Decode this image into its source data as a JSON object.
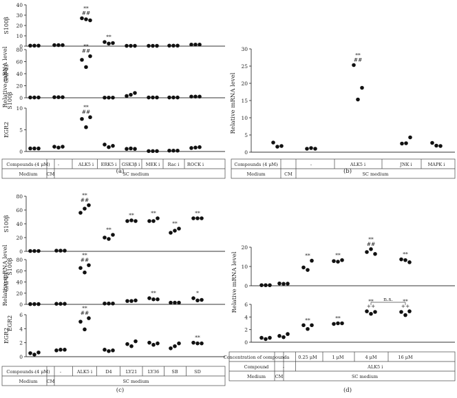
{
  "figure": {
    "row_labels": {
      "compounds_4um": "Compounds (4 μM)",
      "compound": "Compound",
      "concentration": "Concentration of compounda",
      "medium": "Medium"
    },
    "panel_letters": [
      "(a)",
      "(b)",
      "(c)",
      "(d)"
    ],
    "common_ylabel": "Relative mRNA level",
    "dash": "-",
    "cm_label": "CM",
    "sc_medium_label": "SC medium",
    "sig_double_star": "**",
    "sig_double_hash": "##",
    "sig_single_star": "*",
    "sig_double_plus": "++",
    "ns_label": "n.s.",
    "alk5_label": "ALK5 i"
  },
  "chart_data": [
    {
      "panel": "(a)",
      "type": "scatter",
      "categories": [
        "-",
        "-",
        "ALK5 i",
        "ERK5 i",
        "GSK3β i",
        "MEK i",
        "Rac i",
        "ROCK i"
      ],
      "medium": [
        "CM",
        "SC medium"
      ],
      "subplots": [
        {
          "gene": "S100β",
          "ylim": [
            0,
            40
          ],
          "yticks": [
            0,
            10,
            20,
            30,
            40
          ],
          "points": [
            [
              0.5,
              0.5,
              0.5
            ],
            [
              1,
              1,
              1
            ],
            [
              27,
              26,
              25
            ],
            [
              4,
              2.5,
              3
            ],
            [
              0.3,
              0.3,
              0.3
            ],
            [
              0.3,
              0.3,
              0.3
            ],
            [
              0.5,
              0.5,
              0.5
            ],
            [
              1.5,
              1.5,
              1.5
            ]
          ],
          "annotations": [
            {
              "category": 2,
              "lines": [
                "**",
                "##"
              ]
            },
            {
              "category": 3,
              "lines": [
                "**"
              ]
            }
          ]
        },
        {
          "gene": "GAP43",
          "ylim": [
            0,
            80
          ],
          "yticks": [
            0,
            20,
            40,
            60,
            80
          ],
          "points": [
            [
              0.5,
              0.5,
              0.5
            ],
            [
              1,
              1,
              1
            ],
            [
              63,
              51,
              69
            ],
            [
              0.3,
              0.3,
              0.3
            ],
            [
              3,
              5,
              8
            ],
            [
              0.5,
              0.5,
              0.5
            ],
            [
              0.5,
              0.5,
              0.5
            ],
            [
              2,
              2,
              2
            ]
          ],
          "annotations": [
            {
              "category": 2,
              "lines": [
                "**",
                "##"
              ]
            }
          ]
        },
        {
          "gene": "EGR2",
          "ylim": [
            0,
            10
          ],
          "yticks": [
            0,
            5,
            10
          ],
          "points": [
            [
              0.7,
              0.7,
              0.7
            ],
            [
              1.1,
              0.9,
              1.1
            ],
            [
              7.5,
              5.6,
              7.9
            ],
            [
              1.6,
              1.0,
              1.3
            ],
            [
              0.6,
              0.7,
              0.6
            ],
            [
              0.1,
              0.1,
              0.1
            ],
            [
              0.2,
              0.2,
              0.2
            ],
            [
              0.8,
              0.9,
              1.0
            ]
          ],
          "annotations": [
            {
              "category": 2,
              "lines": [
                "**",
                "##"
              ]
            }
          ]
        }
      ]
    },
    {
      "panel": "(b)",
      "type": "scatter",
      "categories": [
        "-",
        "-",
        "ALK5 i",
        "JNK i",
        "MAPK i"
      ],
      "medium": [
        "CM",
        "SC medium"
      ],
      "subplots": [
        {
          "gene": "S100β",
          "ylim": [
            0,
            30
          ],
          "yticks": [
            0,
            5,
            10,
            15,
            20,
            25,
            30
          ],
          "points": [
            [
              2.8,
              1.6,
              1.8
            ],
            [
              1.0,
              1.2,
              1.0
            ],
            [
              25.3,
              15.3,
              18.7
            ],
            [
              2.5,
              2.6,
              4.3
            ],
            [
              2.7,
              1.9,
              1.8
            ]
          ],
          "annotations": [
            {
              "category": 2,
              "lines": [
                "**",
                "##"
              ]
            }
          ]
        }
      ]
    },
    {
      "panel": "(c)",
      "type": "scatter",
      "categories": [
        "-",
        "-",
        "ALK5 i",
        "D4",
        "LY21",
        "LY36",
        "SB",
        "SD"
      ],
      "medium": [
        "CM",
        "SC medium"
      ],
      "subplots": [
        {
          "gene": "S100β",
          "ylim": [
            0,
            80
          ],
          "yticks": [
            0,
            20,
            40,
            60,
            80
          ],
          "points": [
            [
              0.5,
              0.5,
              0.5
            ],
            [
              1,
              1,
              1
            ],
            [
              56,
              62,
              67
            ],
            [
              20,
              18,
              24
            ],
            [
              44,
              45,
              44
            ],
            [
              44,
              44,
              48
            ],
            [
              27,
              30,
              33
            ],
            [
              48,
              48,
              48
            ]
          ],
          "annotations": [
            {
              "category": 2,
              "lines": [
                "**",
                "##"
              ]
            },
            {
              "category": 3,
              "lines": [
                "**"
              ]
            },
            {
              "category": 4,
              "lines": [
                "**"
              ]
            },
            {
              "category": 5,
              "lines": [
                "**"
              ]
            },
            {
              "category": 6,
              "lines": [
                "**"
              ]
            },
            {
              "category": 7,
              "lines": [
                "**"
              ]
            }
          ]
        },
        {
          "gene": "GAP43",
          "ylim": [
            0,
            80
          ],
          "yticks": [
            0,
            20,
            40,
            60,
            80
          ],
          "points": [
            [
              0.5,
              0.5,
              0.5
            ],
            [
              1,
              1,
              1
            ],
            [
              65,
              57,
              70
            ],
            [
              1.5,
              1.5,
              1.5
            ],
            [
              6,
              6,
              7
            ],
            [
              11,
              9,
              9
            ],
            [
              3,
              3,
              3
            ],
            [
              11,
              7,
              8
            ]
          ],
          "annotations": [
            {
              "category": 2,
              "lines": [
                "**",
                "##"
              ]
            },
            {
              "category": 5,
              "lines": [
                "**"
              ]
            },
            {
              "category": 7,
              "lines": [
                "*"
              ]
            }
          ]
        },
        {
          "gene": "EGR2",
          "ylim": [
            0,
            6
          ],
          "yticks": [
            0,
            2,
            4,
            6
          ],
          "points": [
            [
              0.5,
              0.3,
              0.6
            ],
            [
              0.9,
              1.0,
              1.0
            ],
            [
              5.0,
              3.9,
              5.5
            ],
            [
              1.0,
              0.8,
              0.9
            ],
            [
              1.8,
              1.5,
              2.2
            ],
            [
              2.0,
              1.7,
              1.9
            ],
            [
              1.2,
              1.5,
              1.9
            ],
            [
              2.0,
              1.9,
              1.9
            ]
          ],
          "annotations": [
            {
              "category": 2,
              "lines": [
                "**",
                "##"
              ]
            },
            {
              "category": 7,
              "lines": [
                "**"
              ]
            }
          ]
        }
      ]
    },
    {
      "panel": "(d)",
      "type": "scatter",
      "categories": [
        "-",
        "-",
        "0.25 μM",
        "1 μM",
        "4 μM",
        "16 μM"
      ],
      "compound": "ALK5 i",
      "medium": [
        "CM",
        "SC medium"
      ],
      "subplots": [
        {
          "gene": "S100β",
          "ylim": [
            0,
            20
          ],
          "yticks": [
            0,
            10,
            20
          ],
          "points": [
            [
              0.3,
              0.3,
              0.3
            ],
            [
              1.2,
              1.0,
              1.1
            ],
            [
              9.5,
              8.2,
              13
            ],
            [
              12.8,
              12.5,
              13.3
            ],
            [
              17.5,
              19,
              16.5
            ],
            [
              13.7,
              13.3,
              12.2
            ]
          ],
          "annotations": [
            {
              "category": 2,
              "lines": [
                "**"
              ]
            },
            {
              "category": 3,
              "lines": [
                "**"
              ]
            },
            {
              "category": 4,
              "lines": [
                "**",
                "##"
              ]
            },
            {
              "category": 5,
              "lines": [
                "**"
              ]
            }
          ]
        },
        {
          "gene": "EGR2",
          "ylim": [
            0,
            6
          ],
          "yticks": [
            0,
            2,
            4,
            6
          ],
          "points": [
            [
              0.7,
              0.5,
              0.7
            ],
            [
              1.0,
              0.8,
              1.3
            ],
            [
              2.7,
              2.1,
              2.7
            ],
            [
              2.9,
              3.0,
              3.0
            ],
            [
              4.9,
              4.5,
              4.8
            ],
            [
              4.8,
              4.3,
              4.9
            ]
          ],
          "annotations": [
            {
              "category": 2,
              "lines": [
                "**"
              ]
            },
            {
              "category": 3,
              "lines": [
                "**"
              ]
            },
            {
              "category": 4,
              "lines": [
                "**",
                "++"
              ]
            },
            {
              "category": 5,
              "lines": [
                "**",
                "++"
              ]
            }
          ],
          "bracket": {
            "from": 4,
            "to": 5,
            "label": "n.s."
          }
        }
      ]
    }
  ]
}
